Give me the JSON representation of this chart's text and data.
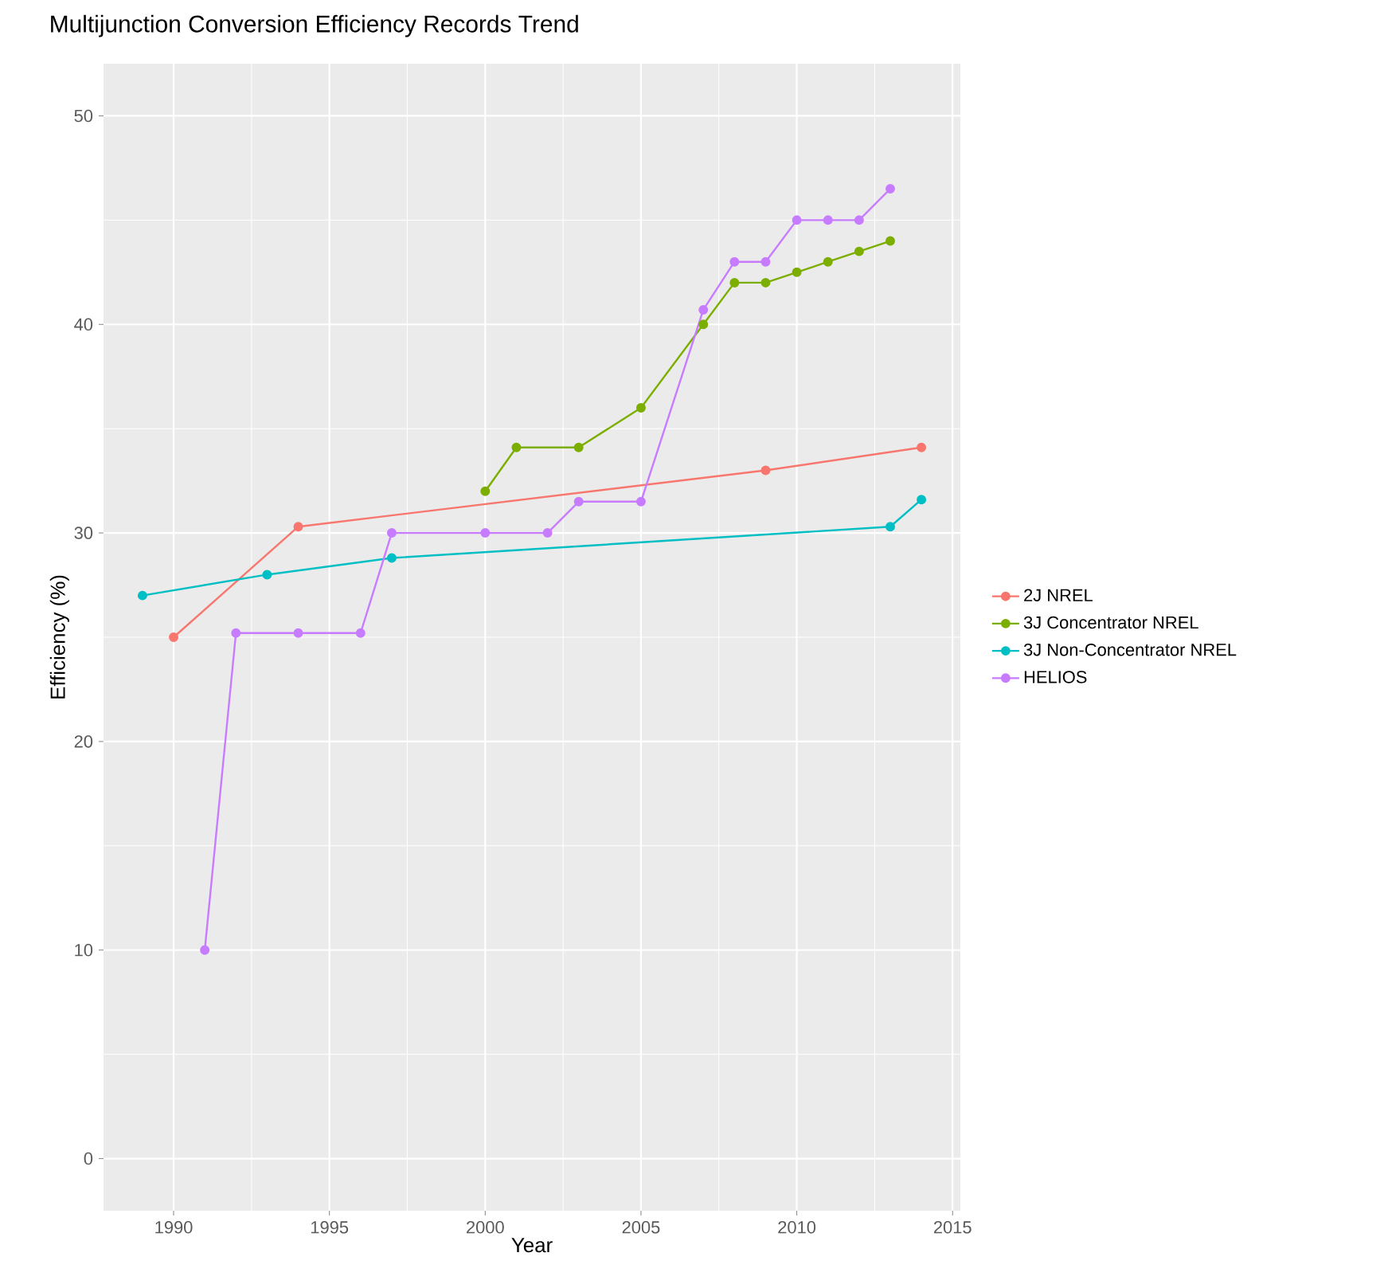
{
  "chart_data": {
    "type": "line",
    "title": "Multijunction Conversion Efficiency Records Trend",
    "xlabel": "Year",
    "ylabel": "Efficiency (%)",
    "xlim": [
      1987.75,
      2015.25
    ],
    "xticks": [
      1990,
      1995,
      2000,
      2005,
      2010,
      2015
    ],
    "ylim": [
      -2.5,
      52.5
    ],
    "yticks": [
      0,
      10,
      20,
      30,
      40,
      50
    ],
    "grid": true,
    "legend": "right",
    "marker": "circle",
    "line_style": "solid",
    "series": [
      {
        "name": "2J NREL",
        "color": "#f8766d",
        "x": [
          1990,
          1994,
          2009,
          2014
        ],
        "values": [
          25,
          30.3,
          33,
          34.1
        ]
      },
      {
        "name": "3J Concentrator NREL",
        "color": "#7cae00",
        "x": [
          2000,
          2001,
          2003,
          2005,
          2007,
          2008,
          2009,
          2010,
          2011,
          2012,
          2013
        ],
        "values": [
          32,
          34.1,
          34.1,
          36,
          40,
          42,
          42,
          42.5,
          43,
          43.5,
          44
        ]
      },
      {
        "name": "3J Non-Concentrator NREL",
        "color": "#00bfc4",
        "x": [
          1989,
          1993,
          1997,
          2013,
          2014
        ],
        "values": [
          27,
          28,
          28.8,
          30.3,
          31.6
        ]
      },
      {
        "name": "HELIOS",
        "color": "#c77cff",
        "x": [
          1991,
          1992,
          1994,
          1996,
          1997,
          2000,
          2002,
          2003,
          2005,
          2007,
          2008,
          2009,
          2010,
          2011,
          2012,
          2013
        ],
        "values": [
          10,
          25.2,
          25.2,
          25.2,
          30,
          30,
          30,
          31.5,
          31.5,
          40.7,
          43,
          43,
          45,
          45,
          45,
          46.5
        ]
      }
    ]
  }
}
